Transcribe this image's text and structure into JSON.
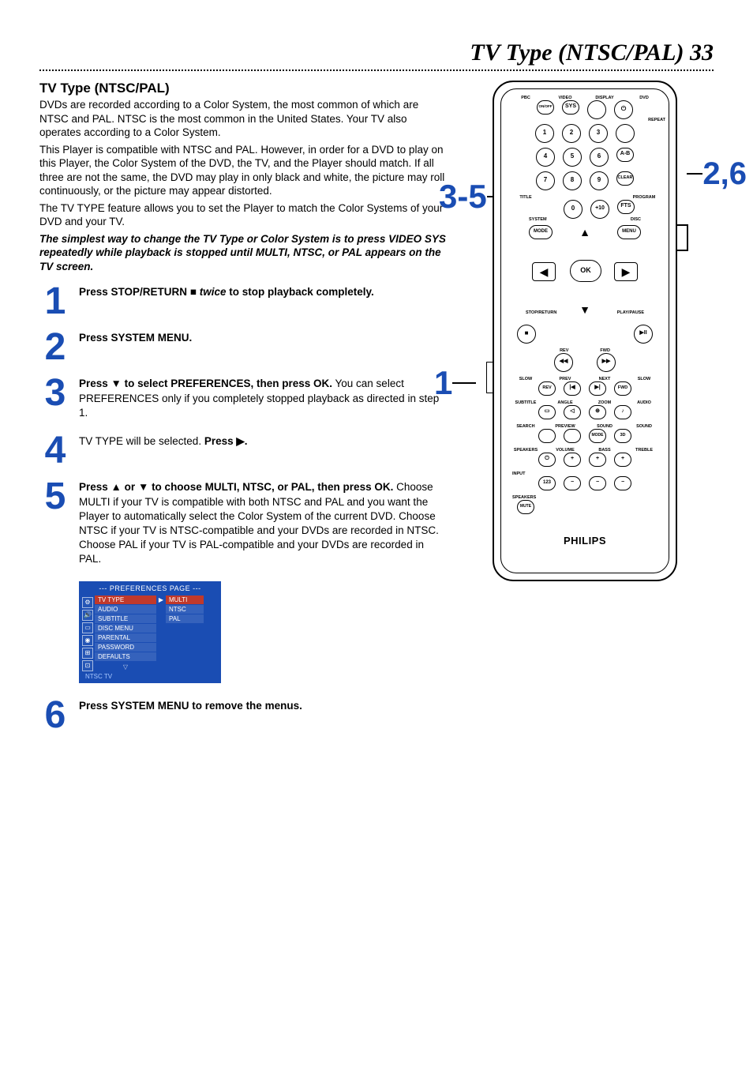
{
  "page": {
    "title_italic": "TV Type (NTSC/PAL)  33",
    "section_title": "TV Type (NTSC/PAL)",
    "intro": {
      "p1": "DVDs are recorded according to a Color System, the most common of which are NTSC and PAL. NTSC is the most common in the United States. Your TV also operates according to a Color System.",
      "p2": "This Player is compatible with NTSC and PAL. However, in order for a DVD to play on this Player, the Color System of the DVD, the TV, and the Player should match. If all three are not the same, the DVD may play in only black and white, the picture may roll continuously,  or the picture may appear distorted.",
      "p3": "The TV TYPE feature allows you to set the Player to match the Color Systems of your DVD and your TV.",
      "p4_emph": "The simplest way to change the TV Type or Color System is to press VIDEO SYS repeatedly while playback is stopped until MULTI, NTSC, or PAL appears on the TV screen."
    }
  },
  "steps": [
    {
      "num": "1",
      "parts": [
        {
          "t": "Press STOP/RETURN ",
          "b": true
        },
        {
          "t": "■",
          "b": true,
          "sym": true
        },
        {
          "t": " twice",
          "b": true,
          "i": true
        },
        {
          "t": " to stop playback completely.",
          "b": true
        }
      ]
    },
    {
      "num": "2",
      "parts": [
        {
          "t": "Press SYSTEM MENU.",
          "b": true
        }
      ]
    },
    {
      "num": "3",
      "parts": [
        {
          "t": "Press ",
          "b": true
        },
        {
          "t": "▼",
          "b": true,
          "sym": true
        },
        {
          "t": " to select PREFERENCES, then press OK.",
          "b": true
        },
        {
          "t": " You can select PREFERENCES only if you completely stopped playback as directed in step 1.",
          "b": false
        }
      ]
    },
    {
      "num": "4",
      "parts": [
        {
          "t": "TV TYPE will be selected. ",
          "b": false
        },
        {
          "t": "Press ",
          "b": true
        },
        {
          "t": "▶",
          "b": true,
          "sym": true
        },
        {
          "t": ".",
          "b": true
        }
      ]
    },
    {
      "num": "5",
      "parts": [
        {
          "t": "Press ",
          "b": true
        },
        {
          "t": "▲",
          "b": true,
          "sym": true
        },
        {
          "t": " or ",
          "b": true
        },
        {
          "t": "▼",
          "b": true,
          "sym": true
        },
        {
          "t": " to choose MULTI, NTSC, or PAL, then press OK.",
          "b": true
        },
        {
          "t": " Choose MULTI if your TV is compatible with both NTSC and PAL and you want the Player to automatically select the Color System of the current DVD. Choose NTSC if your TV is NTSC-compatible and your DVDs are recorded in NTSC. Choose PAL if your TV is PAL-compatible and your DVDs are recorded in PAL.",
          "b": false
        }
      ]
    },
    {
      "num": "6",
      "parts": [
        {
          "t": "Press SYSTEM MENU to remove the menus.",
          "b": true
        }
      ]
    }
  ],
  "prefs_panel": {
    "header": "---   PREFERENCES PAGE   ---",
    "items": [
      "TV TYPE",
      "AUDIO",
      "SUBTITLE",
      "DISC MENU",
      "PARENTAL",
      "PASSWORD",
      "DEFAULTS"
    ],
    "selected_index": 0,
    "options": [
      "MULTI",
      "NTSC",
      "PAL"
    ],
    "selected_option_index": 0,
    "footer": "NTSC TV",
    "bg_color": "#1a4db3",
    "highlight_color": "#c0392b"
  },
  "remote": {
    "brand": "PHILIPS",
    "rows": {
      "r1_labels": [
        "PBC",
        "VIDEO",
        "DISPLAY",
        "DVD"
      ],
      "r1_btns": [
        "ON/OFF",
        "SYS",
        "",
        ""
      ],
      "r1_b4_sym": "⏻",
      "r2_btns": [
        "1",
        "2",
        "3"
      ],
      "r2_extra_label": "REPEAT",
      "r3_btns": [
        "4",
        "5",
        "6"
      ],
      "r3_extra": "A-B",
      "r4_btns": [
        "7",
        "8",
        "9"
      ],
      "r4_extra": "CLEAR",
      "r5_labels": [
        "TITLE",
        "",
        "",
        "PROGRAM"
      ],
      "r5_btns": [
        "0",
        "+10"
      ],
      "r5_extra": "FTS",
      "nav": {
        "mode_l": "MODE",
        "mode_r": "MENU",
        "label_top_l": "SYSTEM",
        "label_top_r": "DISC",
        "ok": "OK",
        "up": "▲",
        "down": "▼",
        "left": "◀",
        "right": "▶",
        "label_l": "STOP/RETURN",
        "label_r": "PLAY/PAUSE",
        "btn_l": "■",
        "btn_r": "▶II"
      },
      "transport_labels": [
        "REV",
        "FWD"
      ],
      "transport_btns": [
        "◀◀",
        "▶▶"
      ],
      "r_slow_labels": [
        "SLOW",
        "PREV",
        "NEXT",
        "SLOW"
      ],
      "r_slow_btns": [
        "REV",
        "|◀",
        "▶|",
        "FWD"
      ],
      "r_sub_labels": [
        "SUBTITLE",
        "ANGLE",
        "ZOOM",
        "AUDIO"
      ],
      "r_sub_btns": [
        "▭",
        "◁",
        "⊕",
        "♪"
      ],
      "r_search_labels": [
        "SEARCH",
        "PREVIEW",
        "SOUND",
        "SOUND"
      ],
      "r_search_btns": [
        "",
        "",
        "MODE",
        "3D"
      ],
      "r_speaker_labels": [
        "SPEAKERS",
        "VOLUME",
        "BASS",
        "TREBLE"
      ],
      "r_speaker_btns": [
        "⏻",
        "+",
        "+",
        "+"
      ],
      "r_speaker_labels2": [
        "INPUT",
        "",
        "",
        ""
      ],
      "r_speaker_btns2": [
        "123",
        "−",
        "−",
        "−"
      ],
      "r_last_labels": [
        "SPEAKERS"
      ],
      "r_last_btn": "MUTE"
    },
    "callouts": {
      "c26": "2,6",
      "c35": "3-5",
      "c1": "1"
    }
  },
  "colors": {
    "accent_blue": "#1a4db3",
    "highlight_red": "#c0392b",
    "bg": "#ffffff",
    "text": "#000000"
  },
  "fonts": {
    "title_family": "Georgia, serif",
    "title_size_pt": 22,
    "body_size_pt": 10,
    "step_num_size_pt": 36
  }
}
